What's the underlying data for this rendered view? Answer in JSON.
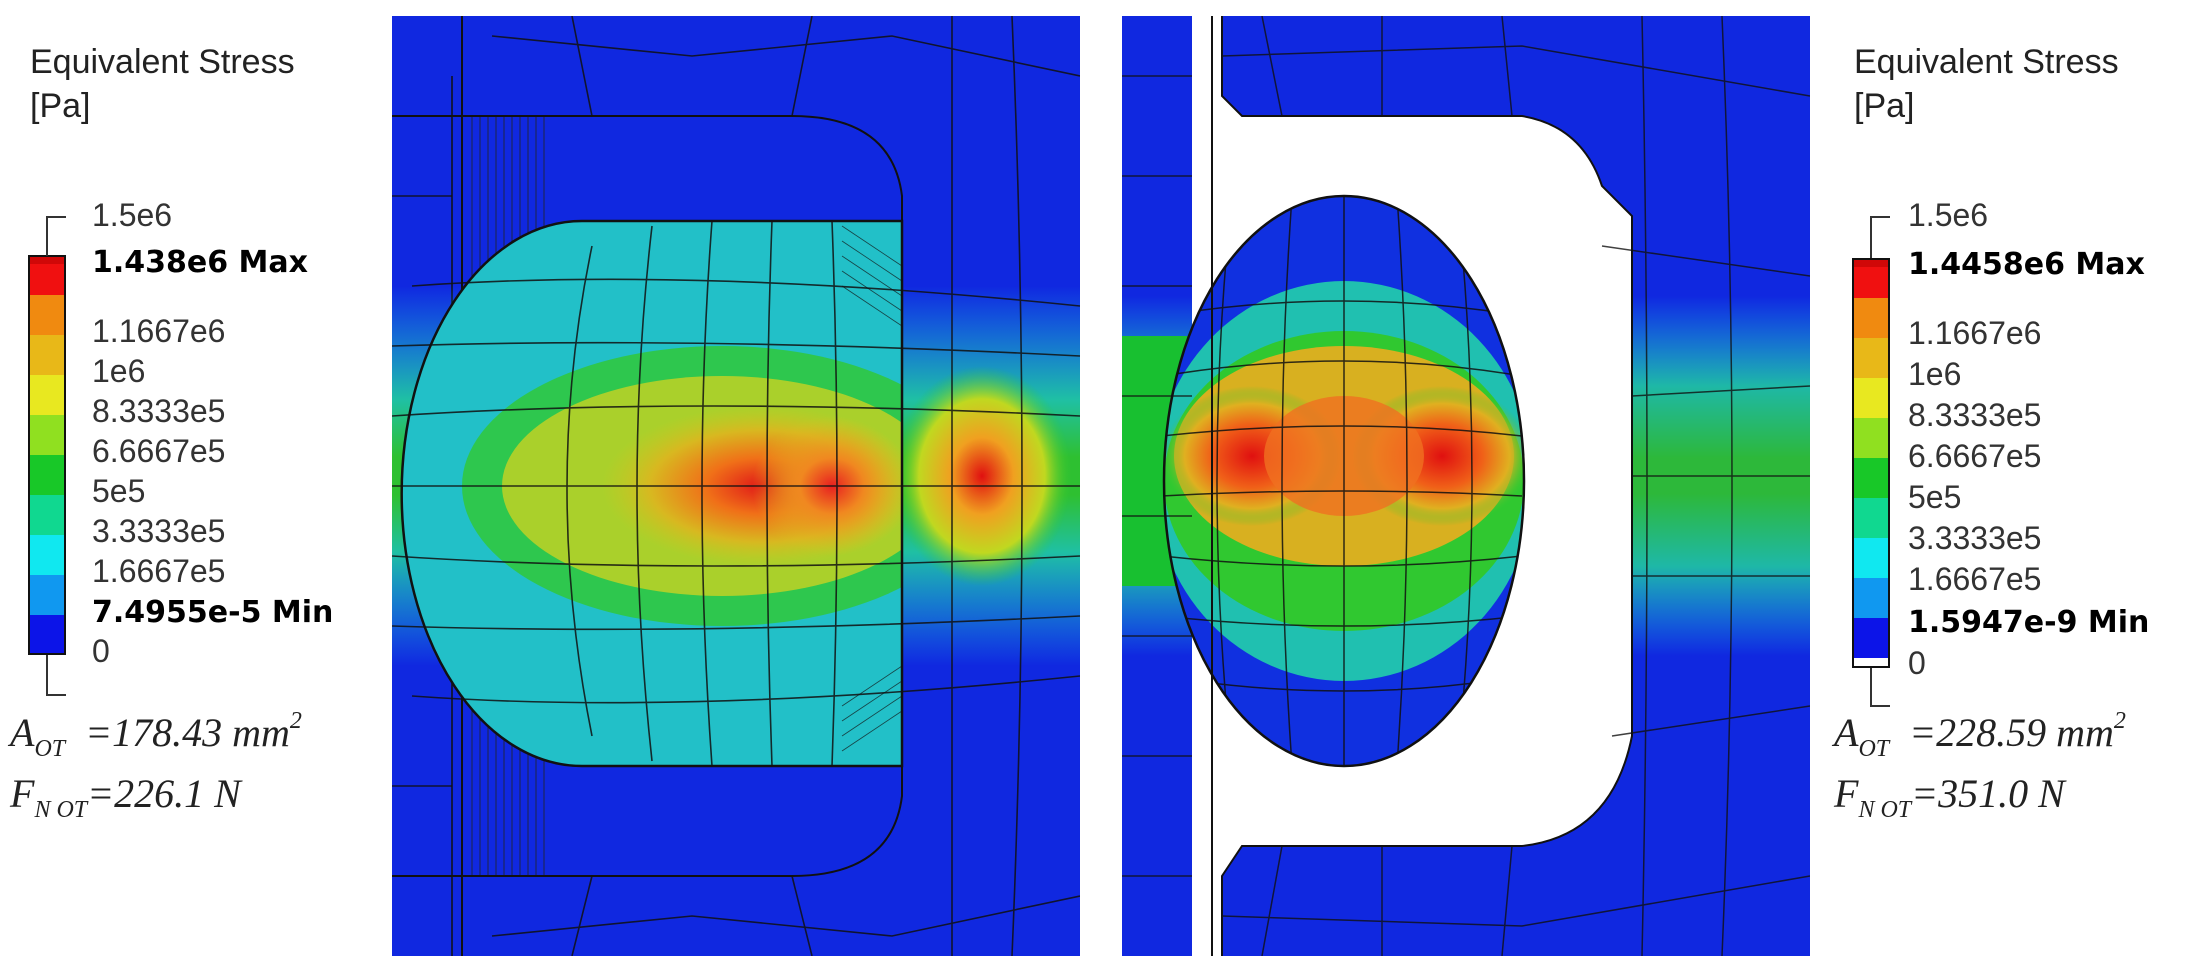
{
  "colors": {
    "blue": "#0a20e0",
    "cyan": "#22b8d8",
    "green": "#16c030",
    "yellow": "#e0e020",
    "orange": "#f09020",
    "red": "#e01010"
  },
  "left_panel": {
    "title_line1": "Equivalent Stress",
    "title_line2": "[Pa]",
    "legend": {
      "top_limit": "1.5e6",
      "max_label": "1.438e6 Max",
      "levels": [
        "1.1667e6",
        "1e6",
        "8.3333e5",
        "6.6667e5",
        "5e5",
        "3.3333e5",
        "1.6667e5"
      ],
      "min_label": "7.4955e-5 Min",
      "bottom_limit": "0"
    },
    "area": {
      "symbol": "A",
      "subscript": "OT",
      "value": "=178.43 mm",
      "superscript": "2"
    },
    "force": {
      "symbol": "F",
      "subscript": "N OT",
      "value": "=226.1 N"
    }
  },
  "right_panel": {
    "title_line1": "Equivalent Stress",
    "title_line2": "[Pa]",
    "legend": {
      "top_limit": "1.5e6",
      "max_label": "1.4458e6 Max",
      "levels": [
        "1.1667e6",
        "1e6",
        "8.3333e5",
        "6.6667e5",
        "5e5",
        "3.3333e5",
        "1.6667e5"
      ],
      "min_label": "1.5947e-9 Min",
      "bottom_limit": "0"
    },
    "area": {
      "symbol": "A",
      "subscript": "OT",
      "value": "=228.59 mm",
      "superscript": "2"
    },
    "force": {
      "symbol": "F",
      "subscript": "N OT",
      "value": "=351.0 N"
    }
  }
}
